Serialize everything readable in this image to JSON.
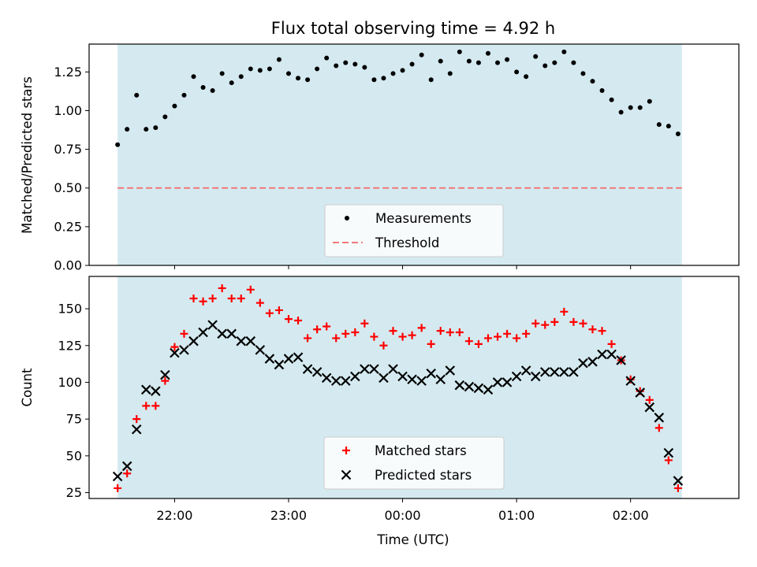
{
  "chart_data": [
    {
      "type": "scatter",
      "title": "Flux total observing time = 4.92 h",
      "xlabel": "",
      "ylabel": "Matched/Predicted stars",
      "x_axis": "time (UTC)",
      "xlim": [
        "21:15",
        "02:57"
      ],
      "ylim": [
        0,
        1.43
      ],
      "yticks": [
        0.0,
        0.25,
        0.5,
        0.75,
        1.0,
        1.25
      ],
      "ytick_labels": [
        "0.00",
        "0.25",
        "0.50",
        "0.75",
        "1.00",
        "1.25"
      ],
      "shaded_span": [
        "21:30",
        "02:27"
      ],
      "shade_color": "#d4eaf0",
      "threshold": 0.5,
      "legend": "lower center",
      "series": [
        {
          "name": "Measurements",
          "kind": "points",
          "color": "#000000",
          "x": [
            "21:30",
            "21:35",
            "21:40",
            "21:45",
            "21:50",
            "21:55",
            "22:00",
            "22:05",
            "22:10",
            "22:15",
            "22:20",
            "22:25",
            "22:30",
            "22:35",
            "22:40",
            "22:45",
            "22:50",
            "22:55",
            "23:00",
            "23:05",
            "23:10",
            "23:15",
            "23:20",
            "23:25",
            "23:30",
            "23:35",
            "23:40",
            "23:45",
            "23:50",
            "23:55",
            "00:00",
            "00:05",
            "00:10",
            "00:15",
            "00:20",
            "00:25",
            "00:30",
            "00:35",
            "00:40",
            "00:45",
            "00:50",
            "00:55",
            "01:00",
            "01:05",
            "01:10",
            "01:15",
            "01:20",
            "01:25",
            "01:30",
            "01:35",
            "01:40",
            "01:45",
            "01:50",
            "01:55",
            "02:00",
            "02:05",
            "02:10",
            "02:15",
            "02:20",
            "02:25"
          ],
          "y": [
            0.78,
            0.88,
            1.1,
            0.88,
            0.89,
            0.96,
            1.03,
            1.1,
            1.22,
            1.15,
            1.13,
            1.24,
            1.18,
            1.22,
            1.27,
            1.26,
            1.27,
            1.33,
            1.24,
            1.21,
            1.2,
            1.27,
            1.34,
            1.29,
            1.31,
            1.3,
            1.28,
            1.2,
            1.21,
            1.24,
            1.26,
            1.3,
            1.36,
            1.2,
            1.32,
            1.24,
            1.38,
            1.32,
            1.31,
            1.37,
            1.31,
            1.33,
            1.25,
            1.22,
            1.35,
            1.29,
            1.31,
            1.38,
            1.31,
            1.24,
            1.19,
            1.13,
            1.07,
            0.99,
            1.02,
            1.02,
            1.06,
            0.91,
            0.9,
            0.85
          ]
        },
        {
          "name": "Threshold",
          "kind": "dashed-line",
          "color": "#f07878",
          "x": [
            "21:30",
            "02:27"
          ],
          "y": [
            0.5,
            0.5
          ]
        }
      ]
    },
    {
      "type": "scatter",
      "title": "",
      "xlabel": "Time (UTC)",
      "ylabel": "Count",
      "xlim": [
        "21:15",
        "02:57"
      ],
      "ylim": [
        21,
        172
      ],
      "yticks": [
        25,
        50,
        75,
        100,
        125,
        150
      ],
      "ytick_labels": [
        "25",
        "50",
        "75",
        "100",
        "125",
        "150"
      ],
      "xticks": [
        "22:00",
        "23:00",
        "00:00",
        "01:00",
        "02:00"
      ],
      "shaded_span": [
        "21:30",
        "02:27"
      ],
      "shade_color": "#d4eaf0",
      "legend": "lower center",
      "series": [
        {
          "name": "Matched stars",
          "marker": "plus",
          "color": "#ff0000",
          "x": [
            "21:30",
            "21:35",
            "21:40",
            "21:45",
            "21:50",
            "21:55",
            "22:00",
            "22:05",
            "22:10",
            "22:15",
            "22:20",
            "22:25",
            "22:30",
            "22:35",
            "22:40",
            "22:45",
            "22:50",
            "22:55",
            "23:00",
            "23:05",
            "23:10",
            "23:15",
            "23:20",
            "23:25",
            "23:30",
            "23:35",
            "23:40",
            "23:45",
            "23:50",
            "23:55",
            "00:00",
            "00:05",
            "00:10",
            "00:15",
            "00:20",
            "00:25",
            "00:30",
            "00:35",
            "00:40",
            "00:45",
            "00:50",
            "00:55",
            "01:00",
            "01:05",
            "01:10",
            "01:15",
            "01:20",
            "01:25",
            "01:30",
            "01:35",
            "01:40",
            "01:45",
            "01:50",
            "01:55",
            "02:00",
            "02:05",
            "02:10",
            "02:15",
            "02:20",
            "02:25"
          ],
          "y": [
            28,
            38,
            75,
            84,
            84,
            101,
            124,
            133,
            157,
            155,
            157,
            164,
            157,
            157,
            163,
            154,
            147,
            149,
            143,
            142,
            130,
            136,
            138,
            130,
            133,
            134,
            140,
            131,
            125,
            135,
            131,
            132,
            137,
            126,
            135,
            134,
            134,
            128,
            126,
            130,
            131,
            133,
            130,
            133,
            140,
            139,
            141,
            148,
            141,
            140,
            136,
            135,
            126,
            115,
            102,
            94,
            88,
            69,
            47,
            28
          ]
        },
        {
          "name": "Predicted stars",
          "marker": "x",
          "color": "#000000",
          "x": [
            "21:30",
            "21:35",
            "21:40",
            "21:45",
            "21:50",
            "21:55",
            "22:00",
            "22:05",
            "22:10",
            "22:15",
            "22:20",
            "22:25",
            "22:30",
            "22:35",
            "22:40",
            "22:45",
            "22:50",
            "22:55",
            "23:00",
            "23:05",
            "23:10",
            "23:15",
            "23:20",
            "23:25",
            "23:30",
            "23:35",
            "23:40",
            "23:45",
            "23:50",
            "23:55",
            "00:00",
            "00:05",
            "00:10",
            "00:15",
            "00:20",
            "00:25",
            "00:30",
            "00:35",
            "00:40",
            "00:45",
            "00:50",
            "00:55",
            "01:00",
            "01:05",
            "01:10",
            "01:15",
            "01:20",
            "01:25",
            "01:30",
            "01:35",
            "01:40",
            "01:45",
            "01:50",
            "01:55",
            "02:00",
            "02:05",
            "02:10",
            "02:15",
            "02:20",
            "02:25"
          ],
          "y": [
            36,
            43,
            68,
            95,
            94,
            105,
            120,
            122,
            128,
            134,
            139,
            133,
            133,
            128,
            128,
            122,
            116,
            112,
            116,
            117,
            109,
            107,
            103,
            101,
            101,
            104,
            109,
            109,
            103,
            109,
            104,
            102,
            101,
            106,
            102,
            108,
            98,
            97,
            96,
            95,
            100,
            100,
            104,
            108,
            104,
            107,
            107,
            107,
            107,
            113,
            114,
            119,
            119,
            115,
            101,
            93,
            83,
            76,
            52,
            33
          ]
        }
      ]
    }
  ]
}
